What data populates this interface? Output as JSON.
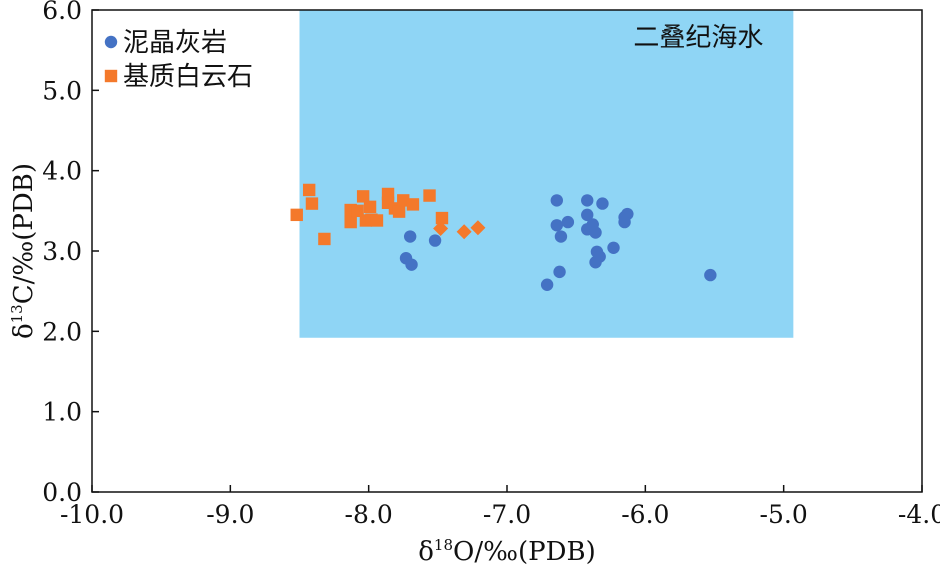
{
  "chart_data": {
    "type": "scatter",
    "xlabel": {
      "prefix": "δ",
      "sup": "18",
      "suffix": "O/‰(PDB)"
    },
    "ylabel": {
      "prefix": "δ",
      "sup": "13",
      "suffix": "C/‰(PDB)"
    },
    "xlim": [
      -10.0,
      -4.0
    ],
    "ylim": [
      0.0,
      6.0
    ],
    "x_ticks": [
      -10.0,
      -9.0,
      -8.0,
      -7.0,
      -6.0,
      -5.0,
      -4.0
    ],
    "y_ticks": [
      0.0,
      1.0,
      2.0,
      3.0,
      4.0,
      5.0,
      6.0
    ],
    "x_tick_labels": [
      "-10.0",
      "-9.0",
      "-8.0",
      "-7.0",
      "-6.0",
      "-5.0",
      "-4.0"
    ],
    "y_tick_labels": [
      "0.0",
      "1.0",
      "2.0",
      "3.0",
      "4.0",
      "5.0",
      "6.0"
    ],
    "grid": false,
    "legend_position": "top-left",
    "region": {
      "label": "二叠纪海水",
      "x": [
        -8.5,
        -4.93
      ],
      "y": [
        1.92,
        6.0
      ],
      "color": "#8fd5f5"
    },
    "series": [
      {
        "name": "泥晶灰岩",
        "marker": "circle",
        "color": "#4472c4",
        "points": [
          [
            -7.7,
            3.18
          ],
          [
            -7.52,
            3.13
          ],
          [
            -7.73,
            2.91
          ],
          [
            -7.69,
            2.83
          ],
          [
            -6.64,
            3.63
          ],
          [
            -6.64,
            3.32
          ],
          [
            -6.61,
            3.18
          ],
          [
            -6.56,
            3.36
          ],
          [
            -6.62,
            2.74
          ],
          [
            -6.71,
            2.58
          ],
          [
            -6.42,
            3.63
          ],
          [
            -6.42,
            3.45
          ],
          [
            -6.42,
            3.27
          ],
          [
            -6.38,
            3.33
          ],
          [
            -6.36,
            3.23
          ],
          [
            -6.35,
            2.99
          ],
          [
            -6.33,
            2.93
          ],
          [
            -6.36,
            2.86
          ],
          [
            -6.31,
            3.59
          ],
          [
            -6.23,
            3.04
          ],
          [
            -6.15,
            3.42
          ],
          [
            -6.13,
            3.46
          ],
          [
            -6.15,
            3.36
          ],
          [
            -5.53,
            2.7
          ]
        ]
      },
      {
        "name": "基质白云石",
        "marker": "square",
        "color": "#f4792b",
        "points": [
          [
            -8.43,
            3.76
          ],
          [
            -8.41,
            3.59
          ],
          [
            -8.52,
            3.45
          ],
          [
            -8.32,
            3.15
          ],
          [
            -8.13,
            3.51
          ],
          [
            -8.13,
            3.36
          ],
          [
            -8.08,
            3.5
          ],
          [
            -8.04,
            3.68
          ],
          [
            -8.02,
            3.38
          ],
          [
            -7.99,
            3.55
          ],
          [
            -7.98,
            3.39
          ],
          [
            -7.94,
            3.38
          ],
          [
            -7.86,
            3.71
          ],
          [
            -7.86,
            3.6
          ],
          [
            -7.81,
            3.53
          ],
          [
            -7.78,
            3.49
          ],
          [
            -7.75,
            3.63
          ],
          [
            -7.68,
            3.58
          ],
          [
            -7.56,
            3.69
          ],
          [
            -7.47,
            3.41
          ]
        ]
      },
      {
        "name": "",
        "marker": "diamond",
        "color": "#f4792b",
        "points": [
          [
            -7.48,
            3.28
          ],
          [
            -7.31,
            3.24
          ],
          [
            -7.21,
            3.29
          ]
        ]
      }
    ]
  }
}
